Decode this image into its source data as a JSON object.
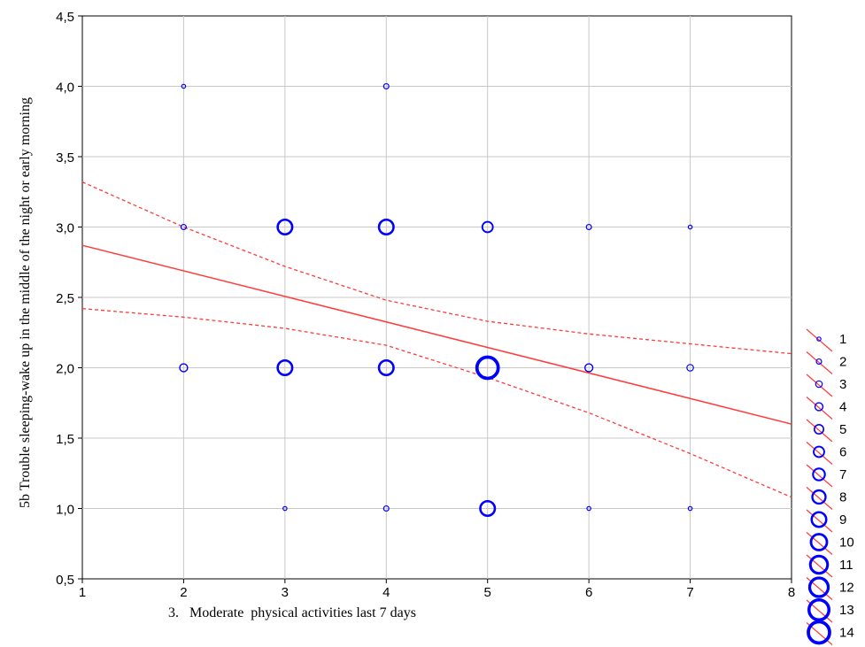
{
  "chart_data": {
    "type": "scatter",
    "title": "",
    "xlabel": "3.   Moderate  physical activities last 7 days",
    "ylabel": "5b Trouble sleeping-wake up in the middle of the night or early morning",
    "xlim": [
      1,
      8
    ],
    "ylim": [
      0.5,
      4.5
    ],
    "x_ticks": [
      "1",
      "2",
      "3",
      "4",
      "5",
      "6",
      "7",
      "8"
    ],
    "y_ticks": [
      "0,5",
      "1,0",
      "1,5",
      "2,0",
      "2,5",
      "3,0",
      "3,5",
      "4,0",
      "4,5"
    ],
    "grid": true,
    "marker_color": "#0000ff",
    "fit_color": "#ff3b3b",
    "points": [
      {
        "x": 2,
        "y": 4.0,
        "count": 1
      },
      {
        "x": 4,
        "y": 4.0,
        "count": 2
      },
      {
        "x": 2,
        "y": 3.0,
        "count": 2
      },
      {
        "x": 3,
        "y": 3.0,
        "count": 9
      },
      {
        "x": 4,
        "y": 3.0,
        "count": 9
      },
      {
        "x": 5,
        "y": 3.0,
        "count": 6
      },
      {
        "x": 6,
        "y": 3.0,
        "count": 2
      },
      {
        "x": 7,
        "y": 3.0,
        "count": 1
      },
      {
        "x": 2,
        "y": 2.0,
        "count": 4
      },
      {
        "x": 3,
        "y": 2.0,
        "count": 9
      },
      {
        "x": 4,
        "y": 2.0,
        "count": 9
      },
      {
        "x": 5,
        "y": 2.0,
        "count": 14
      },
      {
        "x": 6,
        "y": 2.0,
        "count": 4
      },
      {
        "x": 7,
        "y": 2.0,
        "count": 3
      },
      {
        "x": 3,
        "y": 1.0,
        "count": 1
      },
      {
        "x": 4,
        "y": 1.0,
        "count": 2
      },
      {
        "x": 5,
        "y": 1.0,
        "count": 9
      },
      {
        "x": 6,
        "y": 1.0,
        "count": 1
      },
      {
        "x": 7,
        "y": 1.0,
        "count": 1
      }
    ],
    "regression_line": {
      "x": [
        1,
        8
      ],
      "y": [
        2.87,
        1.6
      ]
    },
    "confidence_upper": {
      "x": [
        1,
        2,
        3,
        4,
        5,
        6,
        7,
        8
      ],
      "y": [
        3.32,
        3.0,
        2.72,
        2.48,
        2.33,
        2.24,
        2.17,
        2.1
      ]
    },
    "confidence_lower": {
      "x": [
        1,
        2,
        3,
        4,
        5,
        6,
        7,
        8
      ],
      "y": [
        2.42,
        2.36,
        2.28,
        2.16,
        1.93,
        1.68,
        1.39,
        1.08
      ]
    },
    "legend": {
      "placement": "right",
      "entries": [
        "1",
        "2",
        "3",
        "4",
        "5",
        "6",
        "7",
        "8",
        "9",
        "10",
        "11",
        "12",
        "13",
        "14"
      ]
    }
  }
}
